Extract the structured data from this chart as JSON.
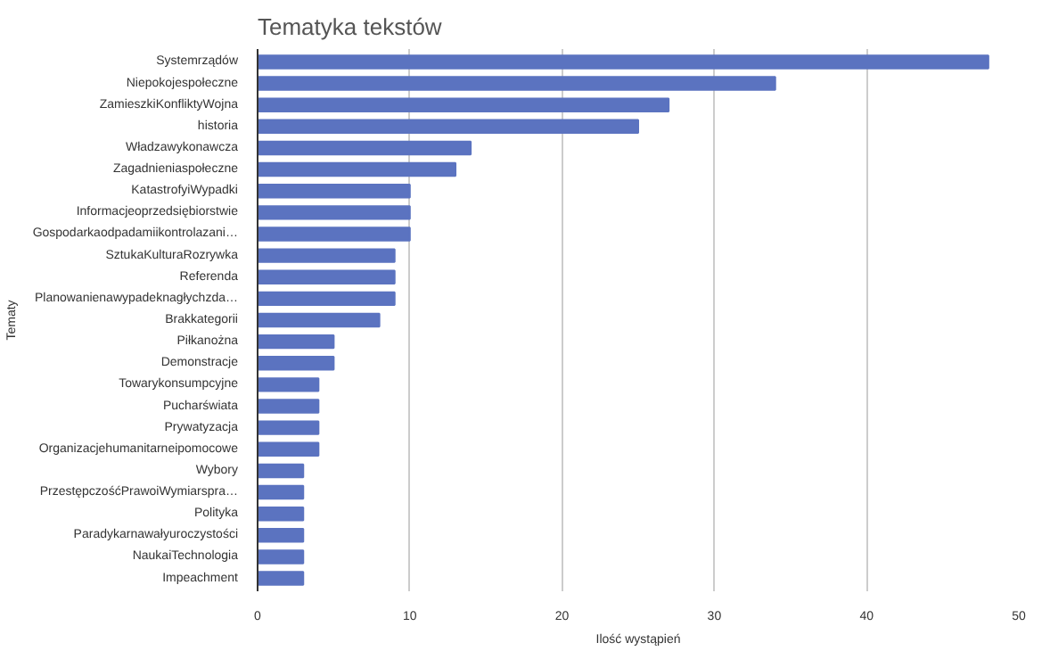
{
  "chart_data": {
    "type": "bar",
    "orientation": "horizontal",
    "title": "Tematyka tekstów",
    "xlabel": "Ilość wystąpień",
    "ylabel": "Tematy",
    "categories": [
      "Systemrządów",
      "Niepokojespołeczne",
      "ZamieszkiKonfliktyWojna",
      "historia",
      "Władzawykonawcza",
      "Zagadnieniaspołeczne",
      "KatastrofyiWypadki",
      "Informacjeoprzedsiębiorstwie",
      "Gospodarkaodpadamiikontrolazani…",
      "SztukaKulturaRozrywka",
      "Referenda",
      "Planowanienawypadeknagłychzda…",
      "Brakkategorii",
      "Piłkanożna",
      "Demonstracje",
      "Towarykonsumpcyjne",
      "Pucharświata",
      "Prywatyzacja",
      "Organizacjehumanitarneipomocowe",
      "Wybory",
      "PrzestępczośćPrawoiWymiarspra…",
      "Polityka",
      "Paradykarnawałyuroczystości",
      "NaukaiTechnologia",
      "Impeachment"
    ],
    "values": [
      48,
      34,
      27,
      25,
      14,
      13,
      10,
      10,
      10,
      9,
      9,
      9,
      8,
      5,
      5,
      4,
      4,
      4,
      4,
      3,
      3,
      3,
      3,
      3,
      3
    ],
    "color": "#5b73c0",
    "xlim": [
      0,
      50
    ],
    "xticks": [
      0,
      10,
      20,
      30,
      40,
      50
    ],
    "grid": "x"
  }
}
